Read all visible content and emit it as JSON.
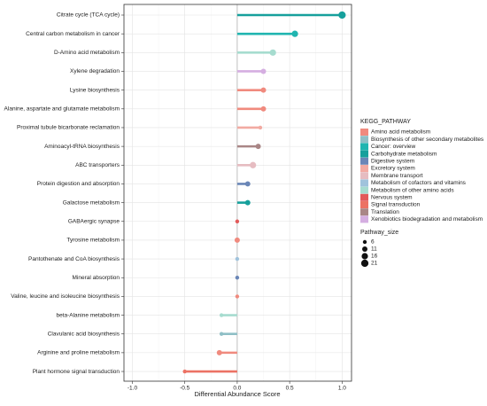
{
  "chart_data": {
    "type": "lollipop",
    "x_label": "Differential Abundance Score",
    "categories": [
      "Citrate cycle (TCA cycle)",
      "Central carbon metabolism in cancer",
      "D-Amino acid metabolism",
      "Xylene degradation",
      "Lysine biosynthesis",
      "Alanine, aspartate and glutamate metabolism",
      "Proximal tubule bicarbonate reclamation",
      "Aminoacyl-tRNA biosynthesis",
      "ABC transporters",
      "Protein digestion and absorption",
      "Galactose metabolism",
      "GABAergic synapse",
      "Tyrosine metabolism",
      "Pantothenate and CoA biosynthesis",
      "Mineral absorption",
      "Valine, leucine and isoleucine biosynthesis",
      "beta-Alanine metabolism",
      "Clavulanic acid biosynthesis",
      "Arginine and proline metabolism",
      "Plant hormone signal transduction"
    ],
    "values": [
      1.0,
      0.55,
      0.34,
      0.25,
      0.25,
      0.25,
      0.22,
      0.2,
      0.15,
      0.1,
      0.1,
      0.0,
      0.0,
      0.0,
      0.0,
      0.0,
      -0.15,
      -0.15,
      -0.17,
      -0.5
    ],
    "sizes": [
      21,
      16,
      16,
      11,
      11,
      11,
      6,
      11,
      16,
      11,
      11,
      6,
      11,
      6,
      6,
      6,
      6,
      6,
      11,
      6
    ],
    "pathways": [
      "Carbohydrate metabolism",
      "Cancer: overview",
      "Metabolism of other amino acids",
      "Xenobiotics biodegradation and metabolism",
      "Amino acid metabolism",
      "Amino acid metabolism",
      "Excretory system",
      "Translation",
      "Membrane transport",
      "Digestive system",
      "Carbohydrate metabolism",
      "Nervous system",
      "Amino acid metabolism",
      "Metabolism of cofactors and vitamins",
      "Digestive system",
      "Amino acid metabolism",
      "Metabolism of other amino acids",
      "Biosynthesis of other secondary metabolites",
      "Amino acid metabolism",
      "Signal transduction"
    ],
    "xlim": [
      -1.08,
      1.09
    ],
    "xticks": [
      {
        "value": -1,
        "label": "-1.0"
      },
      -0.5,
      {
        "value": 0,
        "label": "0.0"
      },
      0.5,
      {
        "value": 1,
        "label": "1.0"
      }
    ],
    "grid": true,
    "legend": {
      "title": "KEGG_PATHWAY",
      "items": [
        {
          "name": "Amino acid metabolism",
          "color": "#f08a7e"
        },
        {
          "name": "Biosynthesis of other secondary metabolites",
          "color": "#8fbfc6"
        },
        {
          "name": "Cancer: overview",
          "color": "#20b5b0"
        },
        {
          "name": "Carbohydrate metabolism",
          "color": "#16a09c"
        },
        {
          "name": "Digestive system",
          "color": "#6a86b7"
        },
        {
          "name": "Excretory system",
          "color": "#f2aaa2"
        },
        {
          "name": "Membrane transport",
          "color": "#e6bcc1"
        },
        {
          "name": "Metabolism of cofactors and vitamins",
          "color": "#a0c3dc"
        },
        {
          "name": "Metabolism of other amino acids",
          "color": "#a6dccf"
        },
        {
          "name": "Nervous system",
          "color": "#e25a5a"
        },
        {
          "name": "Signal transduction",
          "color": "#ec7264"
        },
        {
          "name": "Translation",
          "color": "#a98686"
        },
        {
          "name": "Xenobiotics biodegradation and metabolism",
          "color": "#d5aee1"
        }
      ]
    },
    "size_legend": {
      "title": "Pathway_size",
      "values": [
        6,
        11,
        16,
        21
      ]
    }
  }
}
